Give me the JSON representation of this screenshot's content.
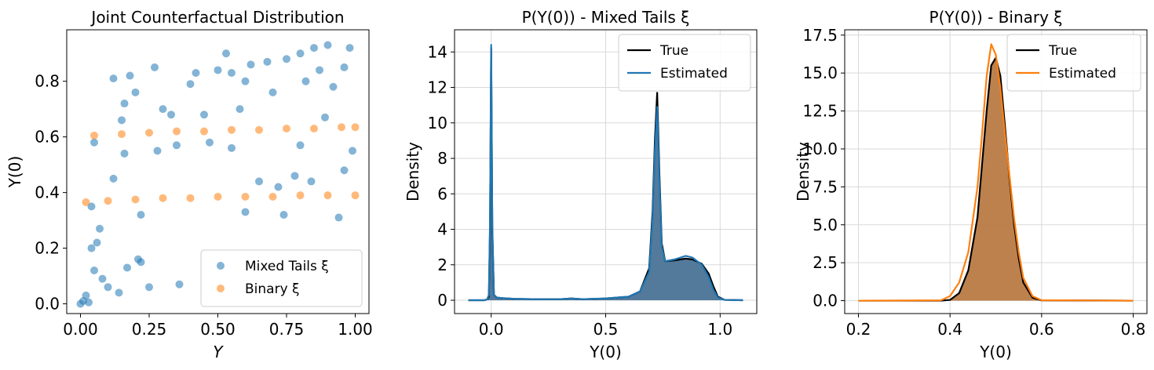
{
  "chart_data": [
    {
      "type": "scatter",
      "title": "Joint Counterfactual Distribution",
      "xlabel": "Y",
      "ylabel": "Y(0)",
      "xlim": [
        -0.05,
        1.05
      ],
      "ylim": [
        -0.035,
        0.985
      ],
      "xticks": [
        0.0,
        0.25,
        0.5,
        0.75,
        1.0
      ],
      "xtick_labels": [
        "0.00",
        "0.25",
        "0.50",
        "0.75",
        "1.00"
      ],
      "yticks": [
        0.0,
        0.2,
        0.4,
        0.6,
        0.8
      ],
      "ytick_labels": [
        "0.0",
        "0.2",
        "0.4",
        "0.6",
        "0.8"
      ],
      "grid": false,
      "legend_position": "lower-right",
      "series": [
        {
          "name": "Mixed Tails ξ",
          "color": "#1f77b4",
          "points": [
            [
              0.0,
              0.0
            ],
            [
              0.01,
              0.01
            ],
            [
              0.02,
              0.03
            ],
            [
              0.03,
              0.005
            ],
            [
              0.04,
              0.2
            ],
            [
              0.05,
              0.12
            ],
            [
              0.06,
              0.22
            ],
            [
              0.07,
              0.27
            ],
            [
              0.08,
              0.09
            ],
            [
              0.1,
              0.06
            ],
            [
              0.12,
              0.81
            ],
            [
              0.14,
              0.04
            ],
            [
              0.15,
              0.66
            ],
            [
              0.16,
              0.72
            ],
            [
              0.17,
              0.13
            ],
            [
              0.18,
              0.82
            ],
            [
              0.2,
              0.76
            ],
            [
              0.21,
              0.16
            ],
            [
              0.22,
              0.15
            ],
            [
              0.25,
              0.06
            ],
            [
              0.27,
              0.85
            ],
            [
              0.3,
              0.7
            ],
            [
              0.33,
              0.68
            ],
            [
              0.36,
              0.07
            ],
            [
              0.4,
              0.79
            ],
            [
              0.42,
              0.83
            ],
            [
              0.45,
              0.68
            ],
            [
              0.5,
              0.84
            ],
            [
              0.53,
              0.9
            ],
            [
              0.55,
              0.83
            ],
            [
              0.58,
              0.7
            ],
            [
              0.6,
              0.8
            ],
            [
              0.62,
              0.86
            ],
            [
              0.65,
              0.44
            ],
            [
              0.68,
              0.87
            ],
            [
              0.7,
              0.76
            ],
            [
              0.72,
              0.42
            ],
            [
              0.75,
              0.88
            ],
            [
              0.78,
              0.46
            ],
            [
              0.8,
              0.9
            ],
            [
              0.82,
              0.8
            ],
            [
              0.85,
              0.92
            ],
            [
              0.87,
              0.84
            ],
            [
              0.9,
              0.93
            ],
            [
              0.92,
              0.78
            ],
            [
              0.94,
              0.31
            ],
            [
              0.96,
              0.85
            ],
            [
              0.98,
              0.92
            ],
            [
              0.99,
              0.55
            ],
            [
              0.96,
              0.48
            ],
            [
              0.89,
              0.67
            ],
            [
              0.8,
              0.57
            ],
            [
              0.55,
              0.56
            ],
            [
              0.47,
              0.58
            ],
            [
              0.35,
              0.57
            ],
            [
              0.28,
              0.55
            ],
            [
              0.12,
              0.45
            ],
            [
              0.16,
              0.54
            ],
            [
              0.22,
              0.32
            ],
            [
              0.05,
              0.58
            ],
            [
              0.04,
              0.35
            ],
            [
              0.6,
              0.33
            ],
            [
              0.74,
              0.32
            ],
            [
              0.84,
              0.44
            ]
          ]
        },
        {
          "name": "Binary ξ",
          "color": "#ff7f0e",
          "points": [
            [
              0.02,
              0.365
            ],
            [
              0.05,
              0.605
            ],
            [
              0.1,
              0.37
            ],
            [
              0.15,
              0.61
            ],
            [
              0.2,
              0.375
            ],
            [
              0.25,
              0.615
            ],
            [
              0.3,
              0.38
            ],
            [
              0.35,
              0.62
            ],
            [
              0.4,
              0.38
            ],
            [
              0.45,
              0.62
            ],
            [
              0.5,
              0.385
            ],
            [
              0.55,
              0.625
            ],
            [
              0.6,
              0.385
            ],
            [
              0.65,
              0.625
            ],
            [
              0.7,
              0.385
            ],
            [
              0.75,
              0.63
            ],
            [
              0.8,
              0.39
            ],
            [
              0.85,
              0.63
            ],
            [
              0.9,
              0.39
            ],
            [
              0.95,
              0.635
            ],
            [
              1.0,
              0.39
            ],
            [
              1.0,
              0.635
            ]
          ]
        }
      ]
    },
    {
      "type": "area",
      "title": "P(Y(0)) - Mixed Tails ξ",
      "xlabel": "Y(0)",
      "ylabel": "Density",
      "xlim": [
        -0.16,
        1.16
      ],
      "ylim": [
        -0.75,
        15.25
      ],
      "xticks": [
        0.0,
        0.5,
        1.0
      ],
      "xtick_labels": [
        "0.0",
        "0.5",
        "1.0"
      ],
      "yticks": [
        0,
        2,
        4,
        6,
        8,
        10,
        12,
        14
      ],
      "ytick_labels": [
        "0",
        "2",
        "4",
        "6",
        "8",
        "10",
        "12",
        "14"
      ],
      "grid": true,
      "legend_position": "top-right",
      "fill_color": "#4a7396",
      "series": [
        {
          "name": "True",
          "color": "#000000",
          "x": [
            -0.1,
            -0.03,
            -0.018,
            -0.01,
            -0.005,
            0.0,
            0.005,
            0.012,
            0.025,
            0.05,
            0.1,
            0.2,
            0.3,
            0.35,
            0.4,
            0.5,
            0.6,
            0.65,
            0.69,
            0.705,
            0.715,
            0.725,
            0.735,
            0.745,
            0.76,
            0.8,
            0.85,
            0.88,
            0.92,
            0.95,
            0.97,
            0.99,
            1.02,
            1.1
          ],
          "y": [
            0,
            0,
            0.05,
            0.2,
            4.0,
            14.2,
            4.0,
            0.3,
            0.15,
            0.12,
            0.08,
            0.06,
            0.06,
            0.1,
            0.06,
            0.1,
            0.2,
            0.5,
            1.8,
            5.0,
            9.0,
            11.7,
            7.0,
            3.2,
            2.2,
            2.25,
            2.35,
            2.3,
            2.05,
            1.5,
            0.8,
            0.2,
            0.02,
            0
          ]
        },
        {
          "name": "Estimated",
          "color": "#1f77b4",
          "x": [
            -0.1,
            -0.03,
            -0.018,
            -0.01,
            -0.005,
            0.0,
            0.005,
            0.012,
            0.025,
            0.05,
            0.1,
            0.2,
            0.3,
            0.35,
            0.4,
            0.5,
            0.6,
            0.65,
            0.69,
            0.705,
            0.715,
            0.725,
            0.735,
            0.745,
            0.76,
            0.8,
            0.85,
            0.88,
            0.92,
            0.95,
            0.97,
            0.99,
            1.02,
            1.1
          ],
          "y": [
            0,
            0,
            0.05,
            0.3,
            4.5,
            14.4,
            4.2,
            0.3,
            0.15,
            0.12,
            0.08,
            0.06,
            0.06,
            0.1,
            0.06,
            0.1,
            0.2,
            0.5,
            1.6,
            4.6,
            8.4,
            10.9,
            6.5,
            3.0,
            2.2,
            2.3,
            2.5,
            2.4,
            2.0,
            1.3,
            0.6,
            0.15,
            0.02,
            0
          ]
        }
      ]
    },
    {
      "type": "area",
      "title": "P(Y(0)) - Binary ξ",
      "xlabel": "Y(0)",
      "ylabel": "Density",
      "xlim": [
        0.17,
        0.83
      ],
      "ylim": [
        -0.85,
        17.85
      ],
      "xticks": [
        0.2,
        0.4,
        0.6,
        0.8
      ],
      "xtick_labels": [
        "0.2",
        "0.4",
        "0.6",
        "0.8"
      ],
      "yticks": [
        0.0,
        2.5,
        5.0,
        7.5,
        10.0,
        12.5,
        15.0,
        17.5
      ],
      "ytick_labels": [
        "0.0",
        "2.5",
        "5.0",
        "7.5",
        "10.0",
        "12.5",
        "15.0",
        "17.5"
      ],
      "grid": true,
      "legend_position": "top-right",
      "fill_color": "#b97a45",
      "series": [
        {
          "name": "True",
          "color": "#000000",
          "x": [
            0.2,
            0.38,
            0.4,
            0.42,
            0.44,
            0.46,
            0.47,
            0.48,
            0.49,
            0.5,
            0.51,
            0.52,
            0.53,
            0.54,
            0.55,
            0.56,
            0.58,
            0.6,
            0.8
          ],
          "y": [
            0,
            0,
            0.05,
            0.5,
            2.0,
            5.5,
            9.0,
            12.5,
            15.5,
            16.0,
            14.8,
            11.5,
            8.0,
            5.0,
            2.8,
            1.2,
            0.2,
            0.02,
            0
          ]
        },
        {
          "name": "Estimated",
          "color": "#ff7f0e",
          "x": [
            0.2,
            0.38,
            0.4,
            0.42,
            0.44,
            0.46,
            0.47,
            0.48,
            0.49,
            0.5,
            0.51,
            0.52,
            0.53,
            0.54,
            0.55,
            0.56,
            0.58,
            0.6,
            0.8
          ],
          "y": [
            0,
            0.02,
            0.3,
            1.2,
            3.2,
            7.5,
            11.0,
            14.8,
            16.9,
            16.2,
            14.0,
            11.0,
            8.2,
            5.4,
            3.2,
            1.5,
            0.3,
            0.03,
            0
          ]
        }
      ]
    }
  ]
}
